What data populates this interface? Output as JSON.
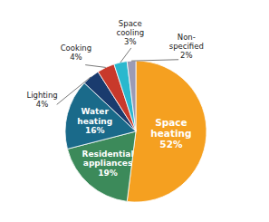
{
  "chart_data": {
    "type": "pie",
    "categories": [
      "Space\nheating",
      "Residential\nappliances",
      "Water\nheating",
      "Lighting",
      "Cooking",
      "Space\ncooling",
      "Non-\nspecified"
    ],
    "values": [
      52,
      19,
      16,
      4,
      4,
      3,
      2
    ],
    "value_labels": [
      "52%",
      "19%",
      "16%",
      "4%",
      "4%",
      "3%",
      "2%"
    ],
    "colors": [
      "#F5A020",
      "#3C8A5A",
      "#1A6A8A",
      "#1A3B6E",
      "#C8392B",
      "#2AB8CE",
      "#9B9BB5"
    ],
    "data_labels": true
  }
}
